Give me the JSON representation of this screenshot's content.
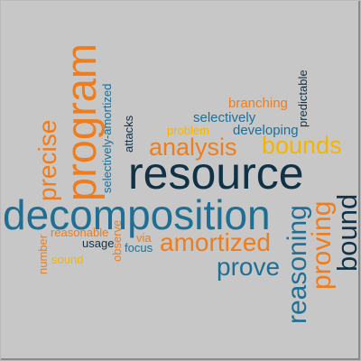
{
  "colors": {
    "background": "#c7c7c7",
    "dark_navy": "#103246",
    "teal_blue": "#1f6f95",
    "orange": "#f07d1b",
    "gold": "#f5b400"
  },
  "words": {
    "resource": "resource",
    "decomposition": "decomposition",
    "program": "program",
    "analysis": "analysis",
    "bounds": "bounds",
    "amortized": "amortized",
    "prove": "prove",
    "proving": "proving",
    "reasoning": "reasoning",
    "bound": "bound",
    "precise": "precise",
    "selectively_amortized": "selectively-amortized",
    "attacks": "attacks",
    "observe": "observe",
    "branching": "branching",
    "selectively": "selectively",
    "problem": "problem",
    "developing": "developing",
    "predictable": "predictable",
    "reasonable": "reasonable",
    "usage": "usage",
    "via": "via",
    "focus": "focus",
    "number": "number",
    "sound": "sound"
  }
}
